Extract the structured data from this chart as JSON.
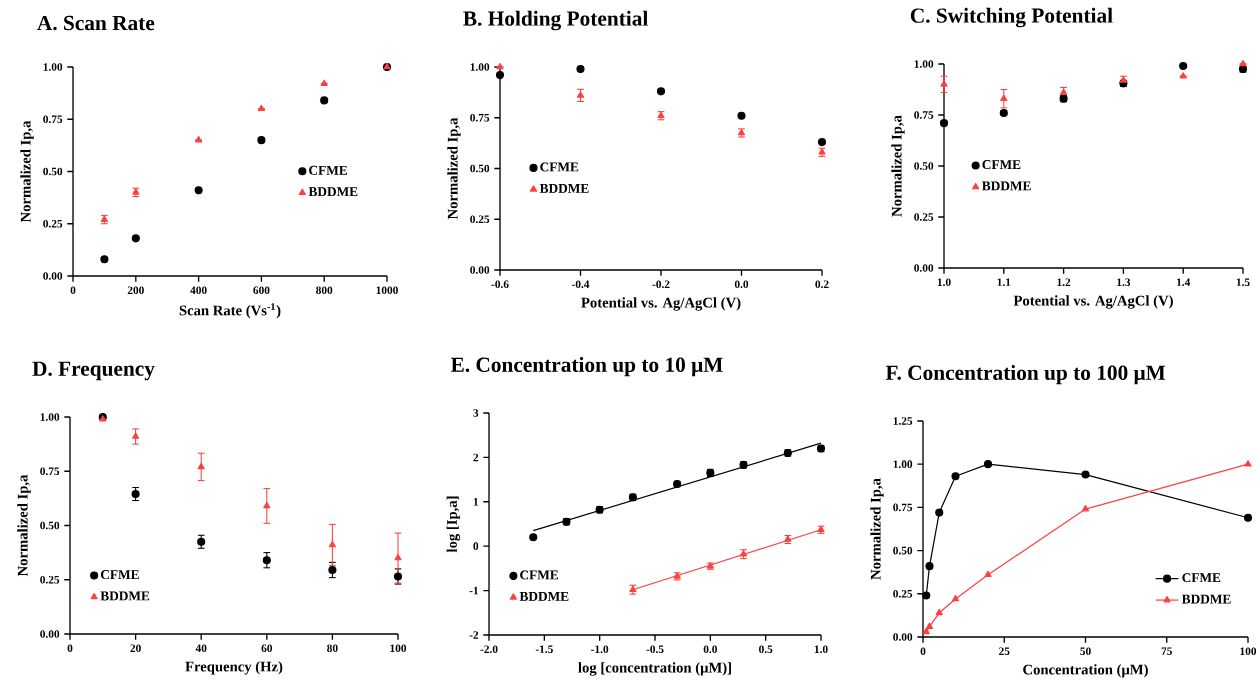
{
  "chart_data": [
    {
      "type": "scatter",
      "title": "A. Scan Rate",
      "xlabel": "Scan Rate (Vs$^{-1}$)",
      "ylabel": "Normalized Ip,a",
      "xlim": [
        0,
        1000
      ],
      "xticks": [
        0,
        200,
        400,
        600,
        800,
        1000
      ],
      "ylim": [
        0,
        1
      ],
      "yticks": [
        {
          "value": 0,
          "label": "0.00"
        },
        {
          "value": 0.25,
          "label": "0.25"
        },
        {
          "value": 0.5,
          "label": "0.50"
        },
        {
          "value": 0.75,
          "label": "0.75"
        },
        {
          "value": 1,
          "label": "1.00"
        }
      ],
      "x": [
        100,
        200,
        400,
        600,
        800,
        1000
      ],
      "legend": "right",
      "series": [
        {
          "name": "CFME",
          "color": "#000000",
          "marker": "circle",
          "values": [
            0.08,
            0.18,
            0.41,
            0.65,
            0.84,
            1.0
          ]
        },
        {
          "name": "BDDME",
          "color": "#ff4040",
          "marker": "triangle",
          "values": [
            0.27,
            0.4,
            0.65,
            0.8,
            0.92,
            1.0
          ],
          "errors": [
            0.02,
            0.02,
            null,
            null,
            null,
            null
          ]
        }
      ]
    },
    {
      "type": "scatter",
      "title": "B. Holding Potential",
      "xlabel": "Potential vs. Ag/AgCl (V)",
      "ylabel": "Normalized Ip,a",
      "xlim": [
        -0.6,
        0.2
      ],
      "xticks": [
        -0.6,
        -0.4,
        -0.2,
        {
          "value": 0,
          "label": "0.0"
        },
        0.2
      ],
      "ylim": [
        0,
        1
      ],
      "yticks": [
        {
          "value": 0,
          "label": "0.00"
        },
        {
          "value": 0.25,
          "label": "0.25"
        },
        {
          "value": 0.5,
          "label": "0.50"
        },
        {
          "value": 0.75,
          "label": "0.75"
        },
        {
          "value": 1,
          "label": "1.00"
        }
      ],
      "x": [
        -0.6,
        -0.4,
        -0.2,
        0,
        0.2
      ],
      "legend": "left",
      "series": [
        {
          "name": "CFME",
          "color": "#000000",
          "marker": "circle",
          "values": [
            0.96,
            0.99,
            0.88,
            0.76,
            0.63
          ]
        },
        {
          "name": "BDDME",
          "color": "#ff4040",
          "marker": "triangle",
          "values": [
            1.0,
            0.86,
            0.76,
            0.675,
            0.58
          ],
          "errors": [
            null,
            0.03,
            0.02,
            0.02,
            0.02
          ]
        }
      ]
    },
    {
      "type": "scatter",
      "title": "C. Switching Potential",
      "xlabel": "Potential vs. Ag/AgCl (V)",
      "ylabel": "Normalized Ip,a",
      "xlim": [
        1,
        1.5
      ],
      "xticks": [
        {
          "value": 1,
          "label": "1.0"
        },
        1.1,
        1.2,
        1.3,
        1.4,
        1.5
      ],
      "ylim": [
        0,
        1
      ],
      "yticks": [
        {
          "value": 0,
          "label": "0.00"
        },
        {
          "value": 0.25,
          "label": "0.25"
        },
        {
          "value": 0.5,
          "label": "0.50"
        },
        {
          "value": 0.75,
          "label": "0.75"
        },
        {
          "value": 1,
          "label": "1.00"
        }
      ],
      "x": [
        1.0,
        1.1,
        1.2,
        1.3,
        1.4,
        1.5
      ],
      "legend": "left",
      "series": [
        {
          "name": "CFME",
          "color": "#000000",
          "marker": "circle",
          "values": [
            0.71,
            0.76,
            0.83,
            0.905,
            0.99,
            0.975
          ],
          "errors": [
            null,
            0.01,
            0.015,
            0.015,
            null,
            0.015
          ]
        },
        {
          "name": "BDDME",
          "color": "#ff4040",
          "marker": "triangle",
          "values": [
            0.9,
            0.83,
            0.86,
            0.92,
            0.94,
            1.0
          ],
          "errors": [
            0.04,
            0.045,
            0.025,
            0.02,
            null,
            null
          ]
        }
      ]
    },
    {
      "type": "scatter",
      "title": "D. Frequency",
      "xlabel": "Frequency (Hz)",
      "ylabel": "Normalized Ip,a",
      "xlim": [
        0,
        100
      ],
      "xticks": [
        0,
        20,
        40,
        60,
        80,
        100
      ],
      "ylim": [
        0,
        1
      ],
      "yticks": [
        {
          "value": 0,
          "label": "0.00"
        },
        {
          "value": 0.25,
          "label": "0.25"
        },
        {
          "value": 0.5,
          "label": "0.50"
        },
        {
          "value": 0.75,
          "label": "0.75"
        },
        {
          "value": 1,
          "label": "1.00"
        }
      ],
      "x": [
        10,
        20,
        40,
        60,
        80,
        100
      ],
      "legend": "bottom left",
      "series": [
        {
          "name": "CFME",
          "color": "#000000",
          "marker": "circle",
          "values": [
            1.0,
            0.645,
            0.425,
            0.34,
            0.295,
            0.265
          ],
          "errors": [
            null,
            0.03,
            0.03,
            0.035,
            0.035,
            0.035
          ]
        },
        {
          "name": "BDDME",
          "color": "#ff4040",
          "marker": "triangle",
          "values": [
            0.99,
            0.91,
            0.77,
            0.59,
            0.41,
            0.35
          ],
          "errors": [
            null,
            0.035,
            0.063,
            0.08,
            0.095,
            0.115
          ]
        }
      ]
    },
    {
      "type": "scatter",
      "title": "E. Concentration up to 10 μM",
      "xlabel": "log [concentration (μM)]",
      "ylabel": "log [Ip,a]",
      "xlim": [
        -2,
        1
      ],
      "xticks": [
        {
          "value": -2,
          "label": "-2.0"
        },
        -1.5,
        {
          "value": -1,
          "label": "-1.0"
        },
        -0.5,
        {
          "value": 0,
          "label": "0.0"
        },
        0.5,
        {
          "value": 1,
          "label": "1.0"
        }
      ],
      "ylim": [
        -2,
        3
      ],
      "yticks": [
        -2,
        -1,
        0,
        1,
        2,
        3
      ],
      "legend": "bottom left",
      "series": [
        {
          "name": "CFME",
          "color": "#000000",
          "marker": "circle",
          "x": [
            -1.6,
            -1.3,
            -1.0,
            -0.7,
            -0.3,
            0,
            0.3,
            0.7,
            1.0
          ],
          "values": [
            0.2,
            0.55,
            0.82,
            1.1,
            1.4,
            1.65,
            1.83,
            2.1,
            2.2
          ],
          "errors": [
            null,
            0.07,
            0.07,
            0.07,
            0.06,
            0.08,
            0.07,
            0.07,
            0.07
          ]
        },
        {
          "type": "line",
          "color": "#000000",
          "marker": "none",
          "x": [
            -1.6,
            1.0
          ],
          "values": [
            0.35,
            2.32
          ]
        },
        {
          "name": "BDDME",
          "color": "#ff4040",
          "marker": "triangle",
          "x": [
            -0.7,
            -0.3,
            0,
            0.3,
            0.7,
            1.0
          ],
          "values": [
            -0.98,
            -0.68,
            -0.45,
            -0.18,
            0.15,
            0.37
          ],
          "errors": [
            0.1,
            0.08,
            0.07,
            0.1,
            0.09,
            0.08
          ]
        },
        {
          "type": "line",
          "color": "#ff4040",
          "marker": "none",
          "x": [
            -0.7,
            1.0
          ],
          "values": [
            -0.98,
            0.37
          ]
        }
      ]
    },
    {
      "type": "line",
      "title": "F. Concentration up to 100 μM",
      "xlabel": "Concentration (μM)",
      "ylabel": "Normalized Ip,a",
      "xlim": [
        0,
        100
      ],
      "xticks": [
        0,
        25,
        50,
        75,
        100
      ],
      "ylim": [
        0,
        1.25
      ],
      "yticks": [
        {
          "value": 0,
          "label": "0.00"
        },
        {
          "value": 0.25,
          "label": "0.25"
        },
        {
          "value": 0.5,
          "label": "0.50"
        },
        {
          "value": 0.75,
          "label": "0.75"
        },
        {
          "value": 1,
          "label": "1.00"
        },
        {
          "value": 1.25,
          "label": "1.25"
        }
      ],
      "x": [
        1,
        2,
        5,
        10,
        20,
        50,
        100
      ],
      "legend": "bottom right",
      "series": [
        {
          "name": "CFME",
          "color": "#000000",
          "marker": "circle",
          "values": [
            0.24,
            0.41,
            0.72,
            0.93,
            1.0,
            0.94,
            0.69
          ]
        },
        {
          "name": "BDDME",
          "color": "#ff4040",
          "marker": "triangle",
          "values": [
            0.03,
            0.06,
            0.14,
            0.22,
            0.36,
            0.74,
            1.0
          ]
        }
      ]
    }
  ]
}
